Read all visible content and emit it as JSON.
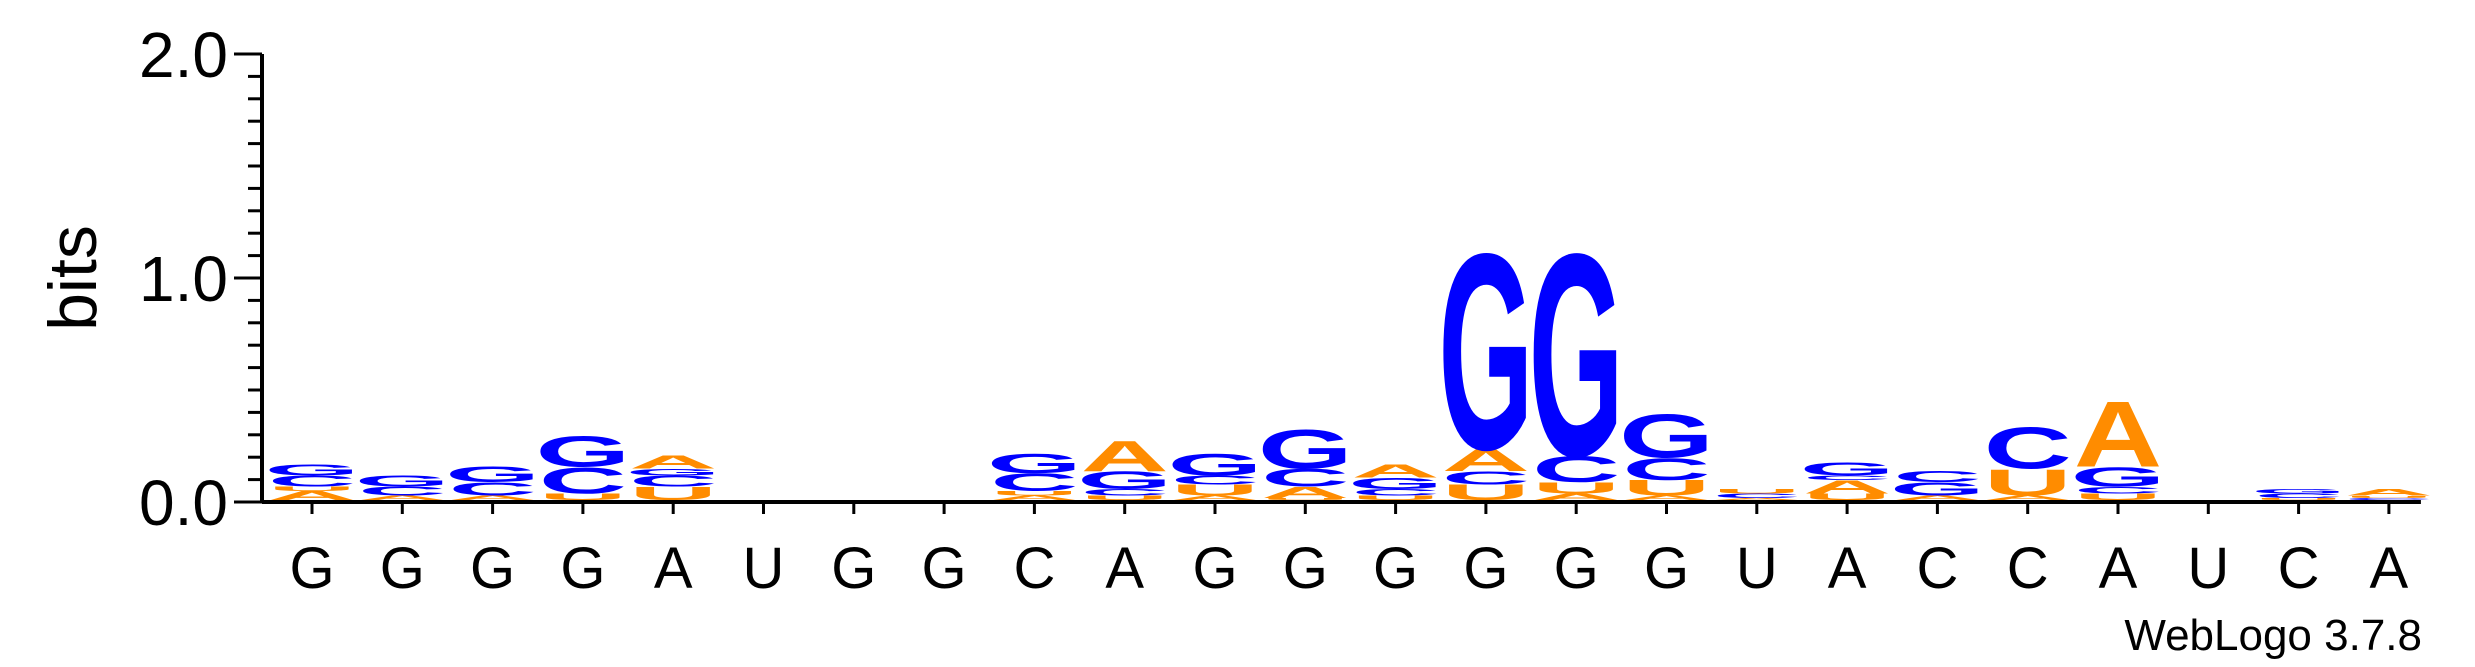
{
  "chart_data": {
    "type": "sequence-logo",
    "ylabel": "bits",
    "ylim": [
      0,
      2.0
    ],
    "yticks": [
      {
        "value": 0.0,
        "label": "0.0"
      },
      {
        "value": 1.0,
        "label": "1.0"
      },
      {
        "value": 2.0,
        "label": "2.0"
      }
    ],
    "sequence": [
      "G",
      "G",
      "G",
      "G",
      "A",
      "U",
      "G",
      "G",
      "C",
      "A",
      "G",
      "G",
      "G",
      "G",
      "G",
      "G",
      "U",
      "A",
      "C",
      "C",
      "A",
      "U",
      "C",
      "A"
    ],
    "colors": {
      "G": "#0000ff",
      "C": "#0000ff",
      "A": "#ff8c00",
      "U": "#ff8c00"
    },
    "stacks": [
      [
        {
          "letter": "A",
          "bits": 0.04
        },
        {
          "letter": "U",
          "bits": 0.02
        },
        {
          "letter": "C",
          "bits": 0.05
        },
        {
          "letter": "G",
          "bits": 0.05
        }
      ],
      [
        {
          "letter": "A",
          "bits": 0.02
        },
        {
          "letter": "C",
          "bits": 0.04
        },
        {
          "letter": "G",
          "bits": 0.05
        }
      ],
      [
        {
          "letter": "A",
          "bits": 0.02
        },
        {
          "letter": "C",
          "bits": 0.06
        },
        {
          "letter": "G",
          "bits": 0.07
        }
      ],
      [
        {
          "letter": "U",
          "bits": 0.03
        },
        {
          "letter": "C",
          "bits": 0.12
        },
        {
          "letter": "G",
          "bits": 0.14
        }
      ],
      [
        {
          "letter": "U",
          "bits": 0.06
        },
        {
          "letter": "C",
          "bits": 0.05
        },
        {
          "letter": "G",
          "bits": 0.03
        },
        {
          "letter": "A",
          "bits": 0.06
        }
      ],
      [],
      [],
      [],
      [
        {
          "letter": "A",
          "bits": 0.02
        },
        {
          "letter": "U",
          "bits": 0.02
        },
        {
          "letter": "C",
          "bits": 0.08
        },
        {
          "letter": "G",
          "bits": 0.09
        }
      ],
      [
        {
          "letter": "U",
          "bits": 0.02
        },
        {
          "letter": "C",
          "bits": 0.03
        },
        {
          "letter": "G",
          "bits": 0.08
        },
        {
          "letter": "A",
          "bits": 0.14
        }
      ],
      [
        {
          "letter": "A",
          "bits": 0.02
        },
        {
          "letter": "U",
          "bits": 0.05
        },
        {
          "letter": "C",
          "bits": 0.04
        },
        {
          "letter": "G",
          "bits": 0.1
        }
      ],
      [
        {
          "letter": "U",
          "bits": 0.01
        },
        {
          "letter": "A",
          "bits": 0.05
        },
        {
          "letter": "C",
          "bits": 0.08
        },
        {
          "letter": "G",
          "bits": 0.18
        }
      ],
      [
        {
          "letter": "U",
          "bits": 0.02
        },
        {
          "letter": "C",
          "bits": 0.03
        },
        {
          "letter": "G",
          "bits": 0.05
        },
        {
          "letter": "A",
          "bits": 0.06
        }
      ],
      [
        {
          "letter": "U",
          "bits": 0.07
        },
        {
          "letter": "C",
          "bits": 0.06
        },
        {
          "letter": "A",
          "bits": 0.1
        },
        {
          "letter": "G",
          "bits": 0.9
        }
      ],
      [
        {
          "letter": "A",
          "bits": 0.03
        },
        {
          "letter": "U",
          "bits": 0.05
        },
        {
          "letter": "C",
          "bits": 0.12
        },
        {
          "letter": "G",
          "bits": 0.93
        }
      ],
      [
        {
          "letter": "A",
          "bits": 0.02
        },
        {
          "letter": "U",
          "bits": 0.07
        },
        {
          "letter": "C",
          "bits": 0.1
        },
        {
          "letter": "G",
          "bits": 0.2
        }
      ],
      [
        {
          "letter": "A",
          "bits": 0.01
        },
        {
          "letter": "C",
          "bits": 0.02
        },
        {
          "letter": "U",
          "bits": 0.02
        }
      ],
      [
        {
          "letter": "U",
          "bits": 0.03
        },
        {
          "letter": "A",
          "bits": 0.06
        },
        {
          "letter": "C",
          "bits": 0.02
        },
        {
          "letter": "G",
          "bits": 0.06
        }
      ],
      [
        {
          "letter": "A",
          "bits": 0.02
        },
        {
          "letter": "G",
          "bits": 0.06
        },
        {
          "letter": "C",
          "bits": 0.05
        }
      ],
      [
        {
          "letter": "A",
          "bits": 0.02
        },
        {
          "letter": "U",
          "bits": 0.12
        },
        {
          "letter": "C",
          "bits": 0.19
        }
      ],
      [
        {
          "letter": "U",
          "bits": 0.03
        },
        {
          "letter": "C",
          "bits": 0.03
        },
        {
          "letter": "G",
          "bits": 0.09
        },
        {
          "letter": "A",
          "bits": 0.3
        }
      ],
      [],
      [
        {
          "letter": "U",
          "bits": 0.01
        },
        {
          "letter": "C",
          "bits": 0.02
        },
        {
          "letter": "G",
          "bits": 0.02
        }
      ],
      [
        {
          "letter": "C",
          "bits": 0.01
        },
        {
          "letter": "U",
          "bits": 0.01
        },
        {
          "letter": "A",
          "bits": 0.03
        }
      ]
    ],
    "footer": "WebLogo 3.7.8"
  }
}
